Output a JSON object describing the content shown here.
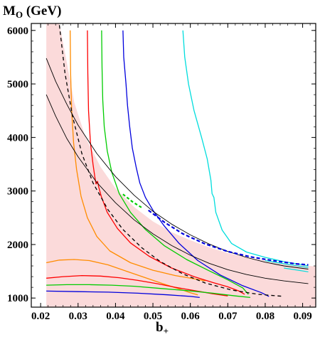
{
  "chart_data": {
    "type": "line",
    "title": "",
    "xlabel_main": "b",
    "xlabel_sub": "+",
    "ylabel_main": "M",
    "ylabel_sub": "O",
    "ylabel_unit": " (GeV)",
    "xlim": [
      0.0175,
      0.0935
    ],
    "ylim": [
      830,
      6130
    ],
    "x_ticks": [
      0.02,
      0.03,
      0.04,
      0.05,
      0.06,
      0.07,
      0.08,
      0.09
    ],
    "x_tick_labels": [
      "0.02",
      "0.03",
      "0.04",
      "0.05",
      "0.06",
      "0.07",
      "0.08",
      "0.09"
    ],
    "y_ticks": [
      1000,
      2000,
      3000,
      4000,
      5000,
      6000
    ],
    "y_tick_labels": [
      "1000",
      "2000",
      "3000",
      "4000",
      "5000",
      "6000"
    ],
    "grid": false,
    "legend": "none",
    "band": {
      "color": "#fbdada",
      "upper": [
        [
          0.0215,
          6130
        ],
        [
          0.025,
          6130
        ],
        [
          0.027,
          5400
        ],
        [
          0.029,
          4650
        ],
        [
          0.032,
          4000
        ],
        [
          0.036,
          3450
        ],
        [
          0.04,
          3050
        ],
        [
          0.045,
          2700
        ],
        [
          0.05,
          2430
        ],
        [
          0.055,
          2230
        ],
        [
          0.06,
          2080
        ],
        [
          0.065,
          1950
        ],
        [
          0.07,
          1840
        ],
        [
          0.075,
          1760
        ],
        [
          0.08,
          1700
        ],
        [
          0.085,
          1650
        ],
        [
          0.09,
          1610
        ],
        [
          0.0935,
          1590
        ]
      ],
      "lower": [
        [
          0.0215,
          830
        ],
        [
          0.0935,
          830
        ]
      ]
    },
    "series": [
      {
        "color": "#ff8c00",
        "points": [
          [
            0.0279,
            6000
          ],
          [
            0.028,
            5200
          ],
          [
            0.0283,
            4500
          ],
          [
            0.0288,
            3900
          ],
          [
            0.0296,
            3400
          ],
          [
            0.0308,
            2900
          ],
          [
            0.0325,
            2500
          ],
          [
            0.035,
            2150
          ],
          [
            0.0385,
            1880
          ],
          [
            0.044,
            1660
          ],
          [
            0.05,
            1520
          ],
          [
            0.056,
            1420
          ],
          [
            0.061,
            1360
          ],
          [
            0.064,
            1320
          ]
        ]
      },
      {
        "color": "#ff8c00",
        "points": [
          [
            0.0215,
            1660
          ],
          [
            0.025,
            1710
          ],
          [
            0.029,
            1720
          ],
          [
            0.033,
            1700
          ],
          [
            0.038,
            1620
          ],
          [
            0.043,
            1500
          ],
          [
            0.048,
            1380
          ],
          [
            0.053,
            1260
          ],
          [
            0.057,
            1170
          ],
          [
            0.06,
            1100
          ],
          [
            0.062,
            1060
          ]
        ]
      },
      {
        "color": "#ff0000",
        "points": [
          [
            0.0325,
            6000
          ],
          [
            0.0326,
            5200
          ],
          [
            0.0328,
            4500
          ],
          [
            0.0333,
            3900
          ],
          [
            0.034,
            3500
          ],
          [
            0.0345,
            3250
          ],
          [
            0.0348,
            3130
          ],
          [
            0.0352,
            3180
          ],
          [
            0.0355,
            3080
          ],
          [
            0.0362,
            2900
          ],
          [
            0.0378,
            2600
          ],
          [
            0.0405,
            2300
          ],
          [
            0.044,
            2030
          ],
          [
            0.049,
            1780
          ],
          [
            0.055,
            1560
          ],
          [
            0.061,
            1400
          ],
          [
            0.066,
            1290
          ],
          [
            0.07,
            1210
          ],
          [
            0.073,
            1130
          ],
          [
            0.0745,
            1070
          ]
        ]
      },
      {
        "color": "#ff0000",
        "points": [
          [
            0.0215,
            1370
          ],
          [
            0.026,
            1400
          ],
          [
            0.031,
            1420
          ],
          [
            0.036,
            1410
          ],
          [
            0.041,
            1380
          ],
          [
            0.046,
            1330
          ],
          [
            0.051,
            1270
          ],
          [
            0.056,
            1200
          ],
          [
            0.061,
            1140
          ],
          [
            0.066,
            1080
          ],
          [
            0.07,
            1040
          ]
        ]
      },
      {
        "color": "#00cc00",
        "points": [
          [
            0.0363,
            6000
          ],
          [
            0.0364,
            5300
          ],
          [
            0.0366,
            4700
          ],
          [
            0.037,
            4200
          ],
          [
            0.0378,
            3750
          ],
          [
            0.039,
            3350
          ],
          [
            0.041,
            2950
          ],
          [
            0.044,
            2600
          ],
          [
            0.048,
            2280
          ],
          [
            0.053,
            1980
          ],
          [
            0.059,
            1720
          ],
          [
            0.065,
            1510
          ],
          [
            0.07,
            1340
          ],
          [
            0.074,
            1190
          ],
          [
            0.0755,
            1070
          ]
        ]
      },
      {
        "color": "#00cc00",
        "points": [
          [
            0.0215,
            1240
          ],
          [
            0.027,
            1250
          ],
          [
            0.033,
            1250
          ],
          [
            0.039,
            1240
          ],
          [
            0.045,
            1220
          ],
          [
            0.052,
            1180
          ],
          [
            0.059,
            1140
          ],
          [
            0.066,
            1090
          ],
          [
            0.072,
            1040
          ],
          [
            0.076,
            1010
          ]
        ]
      },
      {
        "color": "#0000dd",
        "points": [
          [
            0.042,
            6000
          ],
          [
            0.0422,
            5500
          ],
          [
            0.0428,
            5000
          ],
          [
            0.0432,
            4600
          ],
          [
            0.0438,
            4200
          ],
          [
            0.0445,
            3800
          ],
          [
            0.0455,
            3450
          ],
          [
            0.0465,
            3150
          ],
          [
            0.048,
            2880
          ],
          [
            0.05,
            2640
          ],
          [
            0.053,
            2350
          ],
          [
            0.057,
            2020
          ],
          [
            0.062,
            1700
          ],
          [
            0.068,
            1430
          ],
          [
            0.074,
            1230
          ],
          [
            0.079,
            1100
          ],
          [
            0.081,
            1030
          ]
        ]
      },
      {
        "color": "#0000dd",
        "points": [
          [
            0.0215,
            1130
          ],
          [
            0.03,
            1120
          ],
          [
            0.038,
            1110
          ],
          [
            0.046,
            1090
          ],
          [
            0.054,
            1060
          ],
          [
            0.06,
            1030
          ],
          [
            0.0625,
            1010
          ]
        ]
      },
      {
        "color": "#00dddd",
        "points": [
          [
            0.058,
            6000
          ],
          [
            0.0585,
            5500
          ],
          [
            0.0595,
            5000
          ],
          [
            0.061,
            4500
          ],
          [
            0.063,
            4000
          ],
          [
            0.0645,
            3600
          ],
          [
            0.0655,
            3200
          ],
          [
            0.0658,
            2950
          ],
          [
            0.0663,
            2880
          ],
          [
            0.0668,
            2600
          ],
          [
            0.0685,
            2270
          ],
          [
            0.071,
            2020
          ],
          [
            0.075,
            1860
          ],
          [
            0.08,
            1760
          ],
          [
            0.085,
            1680
          ],
          [
            0.09,
            1620
          ],
          [
            0.0915,
            1600
          ]
        ]
      },
      {
        "color": "#000000",
        "width": 0.9,
        "points": [
          [
            0.0215,
            5480
          ],
          [
            0.024,
            5050
          ],
          [
            0.027,
            4620
          ],
          [
            0.03,
            4230
          ],
          [
            0.035,
            3700
          ],
          [
            0.04,
            3270
          ],
          [
            0.045,
            2920
          ],
          [
            0.05,
            2620
          ],
          [
            0.055,
            2380
          ],
          [
            0.06,
            2180
          ],
          [
            0.065,
            2010
          ],
          [
            0.07,
            1870
          ],
          [
            0.075,
            1760
          ],
          [
            0.08,
            1670
          ],
          [
            0.085,
            1600
          ],
          [
            0.0915,
            1540
          ]
        ]
      },
      {
        "color": "#000000",
        "width": 0.9,
        "points": [
          [
            0.0215,
            4800
          ],
          [
            0.024,
            4400
          ],
          [
            0.027,
            3980
          ],
          [
            0.03,
            3640
          ],
          [
            0.035,
            3160
          ],
          [
            0.04,
            2780
          ],
          [
            0.045,
            2460
          ],
          [
            0.05,
            2200
          ],
          [
            0.055,
            1980
          ],
          [
            0.06,
            1800
          ],
          [
            0.065,
            1650
          ],
          [
            0.07,
            1530
          ],
          [
            0.075,
            1440
          ],
          [
            0.08,
            1370
          ],
          [
            0.085,
            1320
          ],
          [
            0.0915,
            1270
          ]
        ]
      },
      {
        "color": "#000000",
        "dash": "5,4",
        "width": 1.3,
        "points": [
          [
            0.025,
            6100
          ],
          [
            0.0265,
            5200
          ],
          [
            0.0285,
            4400
          ],
          [
            0.031,
            3700
          ],
          [
            0.034,
            3150
          ],
          [
            0.038,
            2650
          ],
          [
            0.042,
            2280
          ],
          [
            0.047,
            1940
          ],
          [
            0.052,
            1680
          ],
          [
            0.058,
            1450
          ],
          [
            0.064,
            1280
          ],
          [
            0.071,
            1150
          ],
          [
            0.078,
            1070
          ],
          [
            0.085,
            1030
          ]
        ]
      },
      {
        "color": "#0000dd",
        "dash": "5,3",
        "width": 2.2,
        "points": [
          [
            0.0488,
            2640
          ],
          [
            0.053,
            2420
          ],
          [
            0.058,
            2200
          ],
          [
            0.064,
            2010
          ],
          [
            0.07,
            1870
          ],
          [
            0.076,
            1770
          ],
          [
            0.082,
            1700
          ],
          [
            0.088,
            1640
          ],
          [
            0.0915,
            1620
          ]
        ]
      },
      {
        "color": "#00cc00",
        "dash": "4,3",
        "width": 2.2,
        "points": [
          [
            0.042,
            2940
          ],
          [
            0.0445,
            2800
          ],
          [
            0.047,
            2690
          ]
        ]
      },
      {
        "color": "#00dddd",
        "width": 1.2,
        "points": [
          [
            0.08,
            1700
          ],
          [
            0.085,
            1640
          ],
          [
            0.0915,
            1570
          ]
        ]
      },
      {
        "color": "#00dddd",
        "width": 1.2,
        "points": [
          [
            0.085,
            1560
          ],
          [
            0.0915,
            1490
          ]
        ]
      }
    ]
  }
}
